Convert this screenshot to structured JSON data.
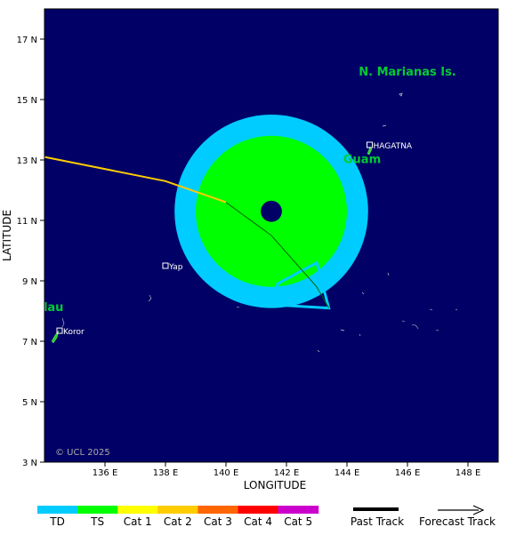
{
  "map": {
    "lat_range": [
      3,
      18
    ],
    "lon_range": [
      134,
      149
    ],
    "ocean_color": "#000066",
    "lat_ticks": [
      {
        "value": 3,
        "label": "3 N"
      },
      {
        "value": 5,
        "label": "5 N"
      },
      {
        "value": 7,
        "label": "7 N"
      },
      {
        "value": 9,
        "label": "9 N"
      },
      {
        "value": 11,
        "label": "11 N"
      },
      {
        "value": 13,
        "label": "13 N"
      },
      {
        "value": 15,
        "label": "15 N"
      },
      {
        "value": 17,
        "label": "17 N"
      }
    ],
    "lon_ticks": [
      {
        "value": 136,
        "label": "136 E"
      },
      {
        "value": 138,
        "label": "138 E"
      },
      {
        "value": 140,
        "label": "140 E"
      },
      {
        "value": 142,
        "label": "142 E"
      },
      {
        "value": 144,
        "label": "144 E"
      },
      {
        "value": 146,
        "label": "146 E"
      },
      {
        "value": 148,
        "label": "148 E"
      }
    ],
    "xlabel": "LONGITUDE",
    "ylabel": "LATITUDE",
    "copyright": "© UCL 2025",
    "region_labels": [
      {
        "text": "N. Marianas Is.",
        "lon": 146.0,
        "lat": 15.8
      },
      {
        "text": "Guam",
        "lon": 144.5,
        "lat": 12.9
      },
      {
        "text": "lau",
        "lon": 134.3,
        "lat": 8.0
      }
    ],
    "cities": [
      {
        "name": "HAGATNA",
        "lon": 144.75,
        "lat": 13.5
      },
      {
        "name": "Yap",
        "lon": 138.0,
        "lat": 9.5
      },
      {
        "name": "Koror",
        "lon": 134.5,
        "lat": 7.35
      }
    ],
    "storm": {
      "center": {
        "lon": 141.5,
        "lat": 11.3
      },
      "ts_wind_radius_deg": 2.5,
      "outer_wind_radius_deg": 3.2,
      "eye_radius_deg": 0.35,
      "past_track": [
        {
          "lon": 134.0,
          "lat": 13.1
        },
        {
          "lon": 138.0,
          "lat": 12.3
        },
        {
          "lon": 140.0,
          "lat": 11.6
        }
      ],
      "forecast_track": [
        {
          "lon": 140.0,
          "lat": 11.6
        },
        {
          "lon": 141.5,
          "lat": 10.5
        },
        {
          "lon": 143.0,
          "lat": 8.8
        },
        {
          "lon": 143.4,
          "lat": 8.1
        }
      ],
      "cone": [
        {
          "lon": 141.7,
          "lat": 8.9
        },
        {
          "lon": 143.0,
          "lat": 9.6
        },
        {
          "lon": 143.4,
          "lat": 8.1
        },
        {
          "lon": 141.7,
          "lat": 8.2
        }
      ]
    }
  },
  "legend": {
    "scale": [
      {
        "label": "TD",
        "color": "#00ccff"
      },
      {
        "label": "TS",
        "color": "#00ff00"
      },
      {
        "label": "Cat 1",
        "color": "#ffff00"
      },
      {
        "label": "Cat 2",
        "color": "#ffcc00"
      },
      {
        "label": "Cat 3",
        "color": "#ff6600"
      },
      {
        "label": "Cat 4",
        "color": "#ff0000"
      },
      {
        "label": "Cat 5",
        "color": "#cc00cc"
      }
    ],
    "past_track_label": "Past Track",
    "forecast_track_label": "Forecast Track"
  },
  "colors": {
    "track_past": "#ffcc00",
    "track_forecast": "#006600",
    "ts_zone": "#00ff00",
    "outer_zone": "#00ccff",
    "cone_stroke": "#00ccff",
    "land": "#33cc33",
    "region_label": "#00cc33"
  }
}
